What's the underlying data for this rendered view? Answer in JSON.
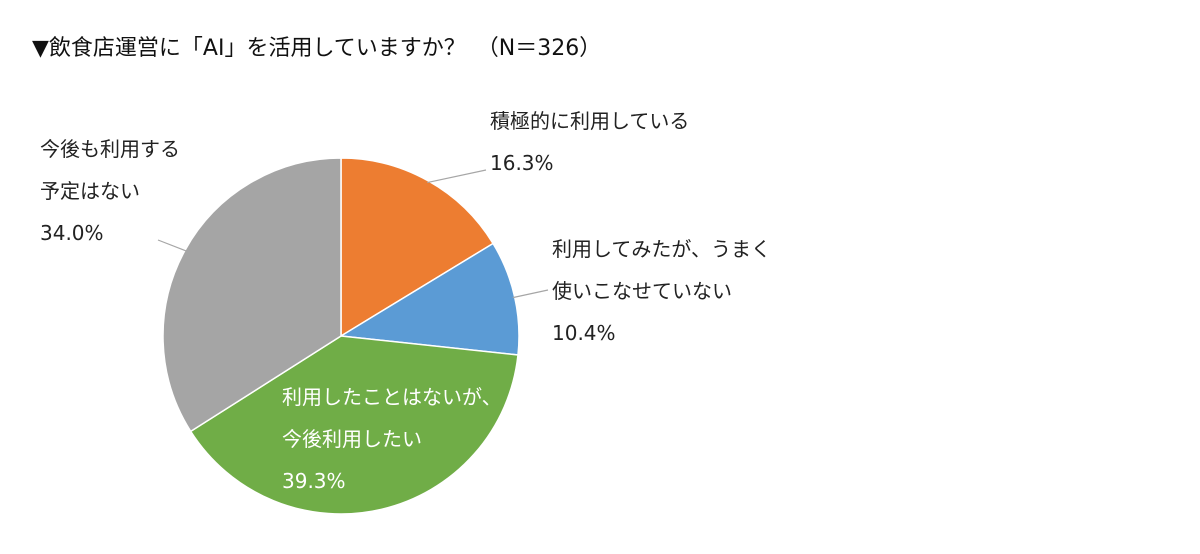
{
  "chart_data": {
    "type": "pie",
    "title": "▼飲食店運営に「AI」を活用していますか？　（N＝326）",
    "slices": [
      {
        "name": "積極的に利用している",
        "label_lines": [
          "積極的に利用している"
        ],
        "value": 16.3,
        "value_label": "16.3%",
        "color": "#ED7D31"
      },
      {
        "name": "利用してみたが、うまく使いこなせていない",
        "label_lines": [
          "利用してみたが、うまく",
          "使いこなせていない"
        ],
        "value": 10.4,
        "value_label": "10.4%",
        "color": "#5B9BD5"
      },
      {
        "name": "利用したことはないが、今後利用したい",
        "label_lines": [
          "利用したことはないが、",
          "今後利用したい"
        ],
        "value": 39.3,
        "value_label": "39.3%",
        "color": "#70AD47"
      },
      {
        "name": "今後も利用する予定はない",
        "label_lines": [
          "今後も利用する",
          "予定はない"
        ],
        "value": 34.0,
        "value_label": "34.0%",
        "color": "#A5A5A5"
      }
    ],
    "start": "12 o'clock",
    "direction": "clockwise"
  }
}
